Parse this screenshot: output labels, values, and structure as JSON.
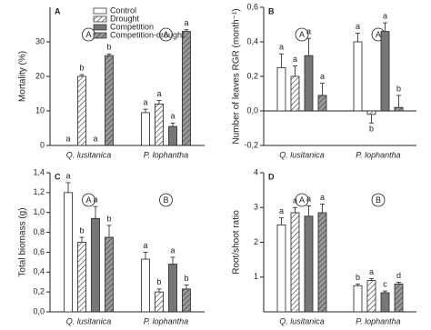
{
  "chart_data": [
    {
      "type": "bar",
      "panel": "A",
      "y_label": "Mortality  (%)",
      "categories": [
        "Q. lusitanica",
        "P. lophantha"
      ],
      "group_letters": [
        "A",
        "A"
      ],
      "legend": "upper left",
      "ylim": [
        0,
        40
      ],
      "yticks": [
        0,
        10,
        20,
        30
      ],
      "series": [
        {
          "name": "Control",
          "color": "#ffffff",
          "hatch": false,
          "values": [
            0,
            9.5
          ],
          "errors": [
            0,
            1
          ],
          "letters": [
            "a",
            "a"
          ]
        },
        {
          "name": "Drought",
          "color": "#ffffff",
          "hatch": true,
          "values": [
            20,
            12
          ],
          "errors": [
            0.5,
            1
          ],
          "letters": [
            "b",
            "a"
          ]
        },
        {
          "name": "Competition",
          "color": "#777777",
          "hatch": false,
          "values": [
            0,
            5.5
          ],
          "errors": [
            0,
            1
          ],
          "letters": [
            "a",
            "a"
          ]
        },
        {
          "name": "Competition-drought",
          "color": "#999999",
          "hatch": true,
          "values": [
            26,
            33
          ],
          "errors": [
            0.5,
            0.5
          ],
          "letters": [
            "b",
            "a"
          ]
        }
      ]
    },
    {
      "type": "bar",
      "panel": "B",
      "y_label": "Number of leaves RGR (month⁻¹)",
      "categories": [
        "Q. lusitanica",
        "P. lophantha"
      ],
      "group_letters": [
        "A",
        "A"
      ],
      "ylim": [
        -0.2,
        0.6
      ],
      "yticks": [
        {
          "value": -0.2,
          "label": "-0,2"
        },
        {
          "value": 0,
          "label": "0,0"
        },
        {
          "value": 0.2,
          "label": "0,2"
        },
        {
          "value": 0.4,
          "label": "0,4"
        },
        {
          "value": 0.6,
          "label": "0,6"
        }
      ],
      "series": [
        {
          "color": "#ffffff",
          "hatch": false,
          "values": [
            0.25,
            0.4
          ],
          "errors": [
            0.08,
            0.05
          ],
          "letters": [
            "a",
            "a"
          ]
        },
        {
          "color": "#ffffff",
          "hatch": true,
          "values": [
            0.2,
            -0.02
          ],
          "errors": [
            0.06,
            0.05
          ],
          "letters": [
            "a",
            "b"
          ]
        },
        {
          "color": "#777777",
          "hatch": false,
          "values": [
            0.32,
            0.46
          ],
          "errors": [
            0.1,
            0.05
          ],
          "letters": [
            "a",
            "a"
          ]
        },
        {
          "color": "#999999",
          "hatch": true,
          "values": [
            0.09,
            0.02
          ],
          "errors": [
            0.07,
            0.07
          ],
          "letters": [
            "a",
            "b"
          ]
        }
      ]
    },
    {
      "type": "bar",
      "panel": "C",
      "y_label": "Total biomass (g)",
      "categories": [
        "Q. lusitanica",
        "P. lophantha"
      ],
      "group_letters": [
        "A",
        "B"
      ],
      "ylim": [
        0,
        1.4
      ],
      "yticks": [
        {
          "value": 0,
          "label": "0,0"
        },
        {
          "value": 0.2,
          "label": "0,2"
        },
        {
          "value": 0.4,
          "label": "0,4"
        },
        {
          "value": 0.6,
          "label": "0,6"
        },
        {
          "value": 0.8,
          "label": "0,8"
        },
        {
          "value": 1.0,
          "label": "1,0"
        },
        {
          "value": 1.2,
          "label": "1,2"
        },
        {
          "value": 1.4,
          "label": "1,4"
        }
      ],
      "series": [
        {
          "color": "#ffffff",
          "hatch": false,
          "values": [
            1.2,
            0.53
          ],
          "errors": [
            0.1,
            0.07
          ],
          "letters": [
            "a",
            "a"
          ]
        },
        {
          "color": "#ffffff",
          "hatch": true,
          "values": [
            0.7,
            0.2
          ],
          "errors": [
            0.05,
            0.03
          ],
          "letters": [
            "b",
            "b"
          ]
        },
        {
          "color": "#777777",
          "hatch": false,
          "values": [
            0.94,
            0.48
          ],
          "errors": [
            0.12,
            0.07
          ],
          "letters": [
            "a",
            "a"
          ]
        },
        {
          "color": "#999999",
          "hatch": true,
          "values": [
            0.75,
            0.23
          ],
          "errors": [
            0.12,
            0.04
          ],
          "letters": [
            "b",
            "b"
          ]
        }
      ]
    },
    {
      "type": "bar",
      "panel": "D",
      "y_label": "Root/shoot ratio",
      "categories": [
        "Q. lusitanica",
        "P. lophantha"
      ],
      "group_letters": [
        "A",
        "B"
      ],
      "ylim": [
        0,
        4
      ],
      "yticks": [
        1,
        2,
        3,
        4
      ],
      "series": [
        {
          "color": "#ffffff",
          "hatch": false,
          "values": [
            2.5,
            0.75
          ],
          "errors": [
            0.2,
            0.05
          ],
          "letters": [
            "a",
            "b"
          ]
        },
        {
          "color": "#ffffff",
          "hatch": true,
          "values": [
            2.85,
            0.9
          ],
          "errors": [
            0.15,
            0.05
          ],
          "letters": [
            "a",
            "a"
          ]
        },
        {
          "color": "#777777",
          "hatch": false,
          "values": [
            2.75,
            0.55
          ],
          "errors": [
            0.3,
            0.05
          ],
          "letters": [
            "a",
            "c"
          ]
        },
        {
          "color": "#999999",
          "hatch": true,
          "values": [
            2.85,
            0.8
          ],
          "errors": [
            0.25,
            0.05
          ],
          "letters": [
            "a",
            "d"
          ]
        }
      ]
    }
  ]
}
